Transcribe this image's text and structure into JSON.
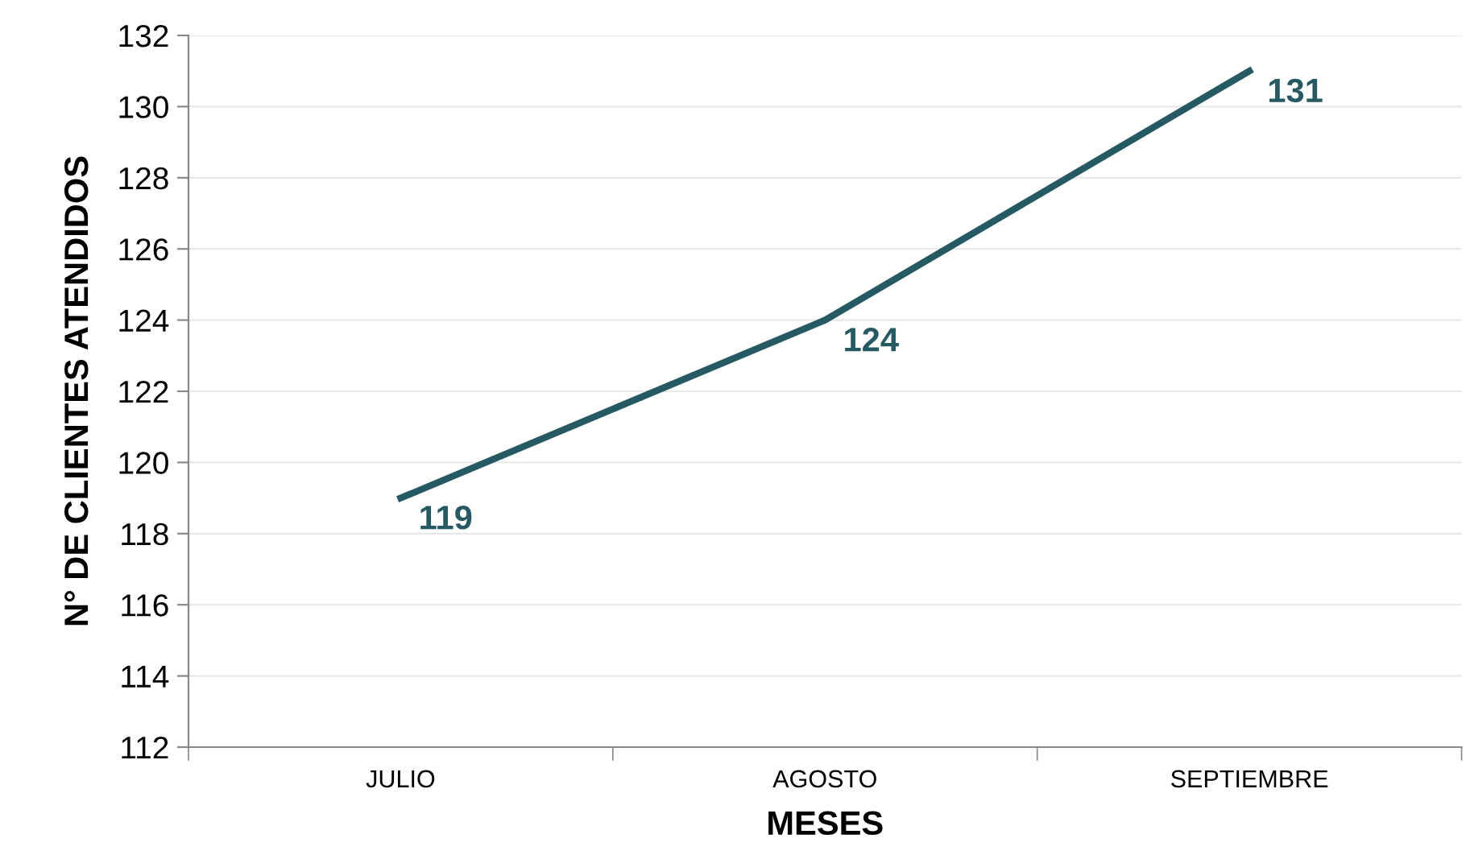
{
  "chart_data": {
    "type": "line",
    "xlabel": "MESES",
    "ylabel": "N° DE CLIENTES ATENDIDOS",
    "categories": [
      "JULIO",
      "AGOSTO",
      "SEPTIEMBRE"
    ],
    "series": [
      {
        "color": "#255a63",
        "values": [
          119,
          124,
          131
        ]
      }
    ],
    "ylim": [
      112,
      132
    ],
    "yticks": [
      112,
      114,
      116,
      118,
      120,
      122,
      124,
      126,
      128,
      130,
      132
    ],
    "grid": "y",
    "data_labels": true,
    "marker": "none",
    "line_style": "solid",
    "legend": false
  }
}
